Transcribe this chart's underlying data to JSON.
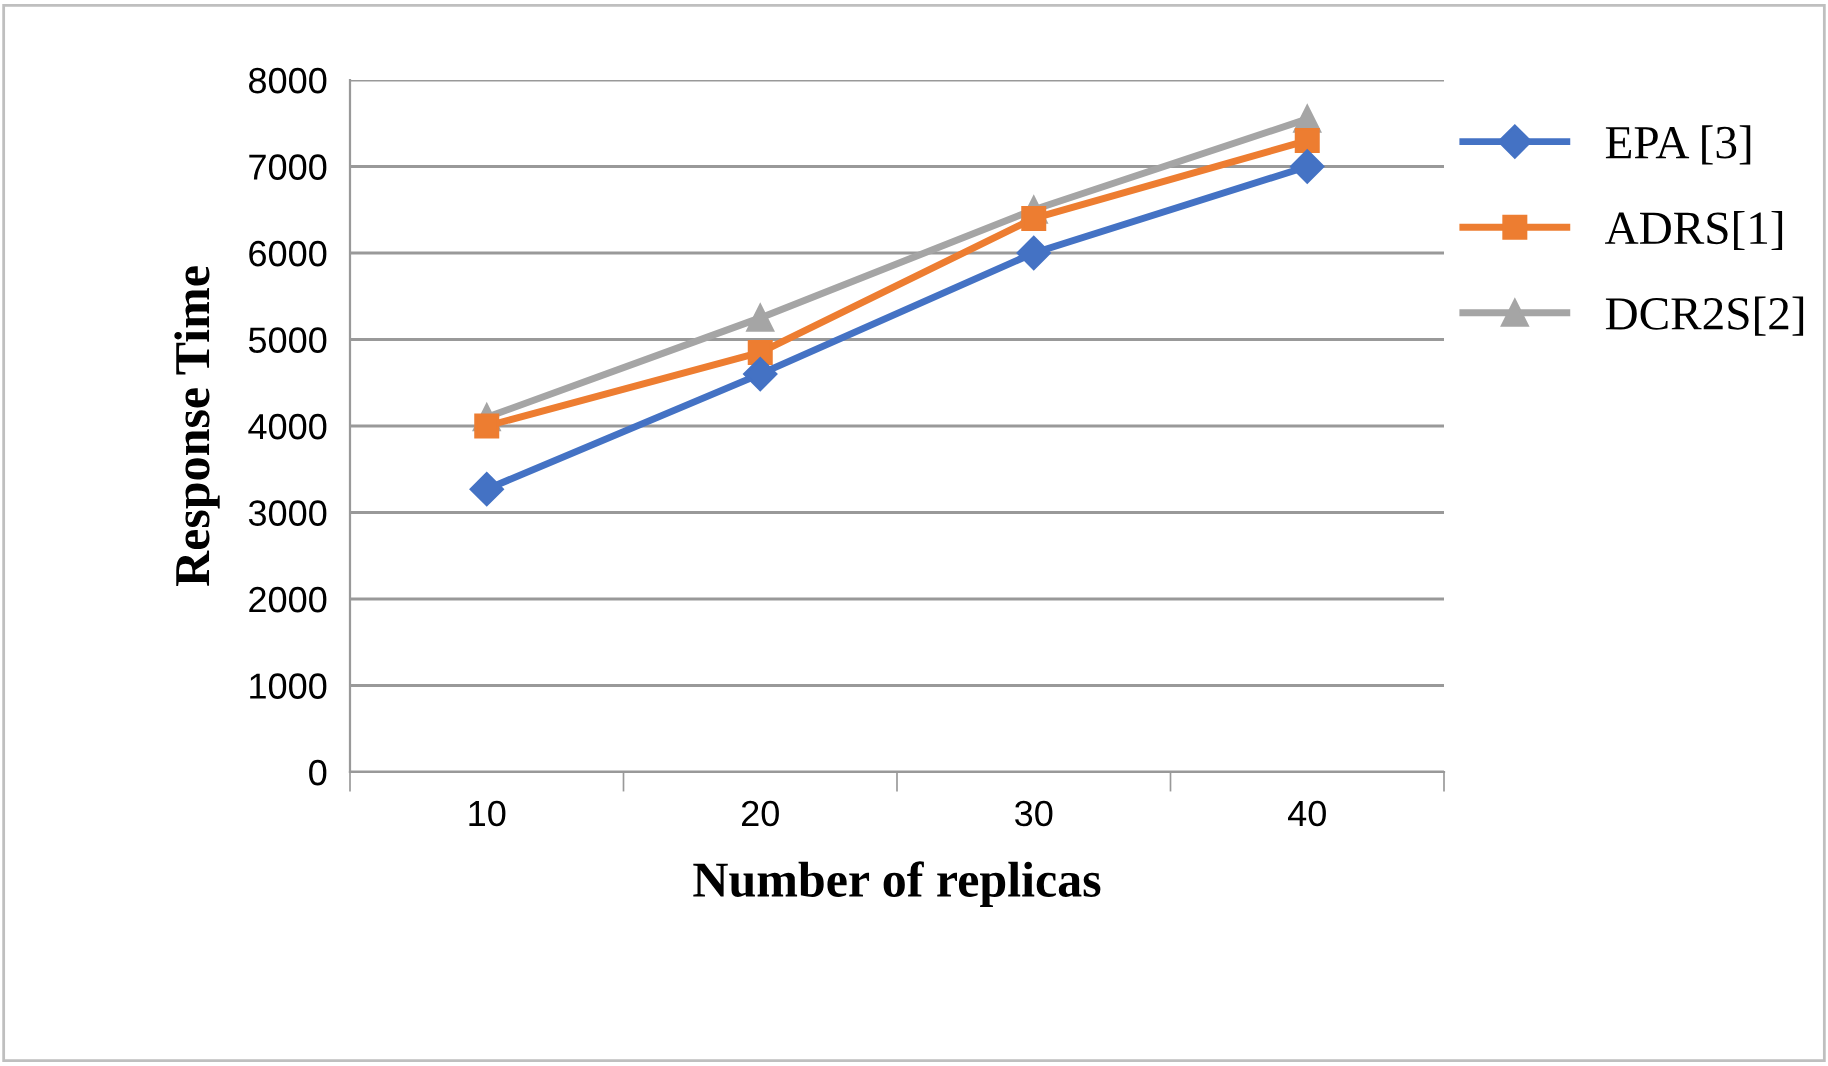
{
  "chart_data": {
    "type": "line",
    "xlabel": "Number of replicas",
    "ylabel": "Response Time",
    "categories": [
      "10",
      "20",
      "30",
      "40"
    ],
    "series": [
      {
        "name": "EPA [3]",
        "color": "#4472c4",
        "marker": "diamond",
        "values": [
          3270,
          4600,
          6000,
          7000
        ]
      },
      {
        "name": "ADRS[1]",
        "color": "#ed7d31",
        "marker": "square",
        "values": [
          4000,
          4850,
          6400,
          7300
        ]
      },
      {
        "name": "DCR2S[2]",
        "color": "#a5a5a5",
        "marker": "triangle",
        "values": [
          4100,
          5250,
          6500,
          7550
        ]
      }
    ],
    "ylim": [
      0,
      8000
    ],
    "yticks": [
      0,
      1000,
      2000,
      3000,
      4000,
      5000,
      6000,
      7000,
      8000
    ],
    "grid": "y",
    "legend": "right",
    "line_style": "solid"
  }
}
